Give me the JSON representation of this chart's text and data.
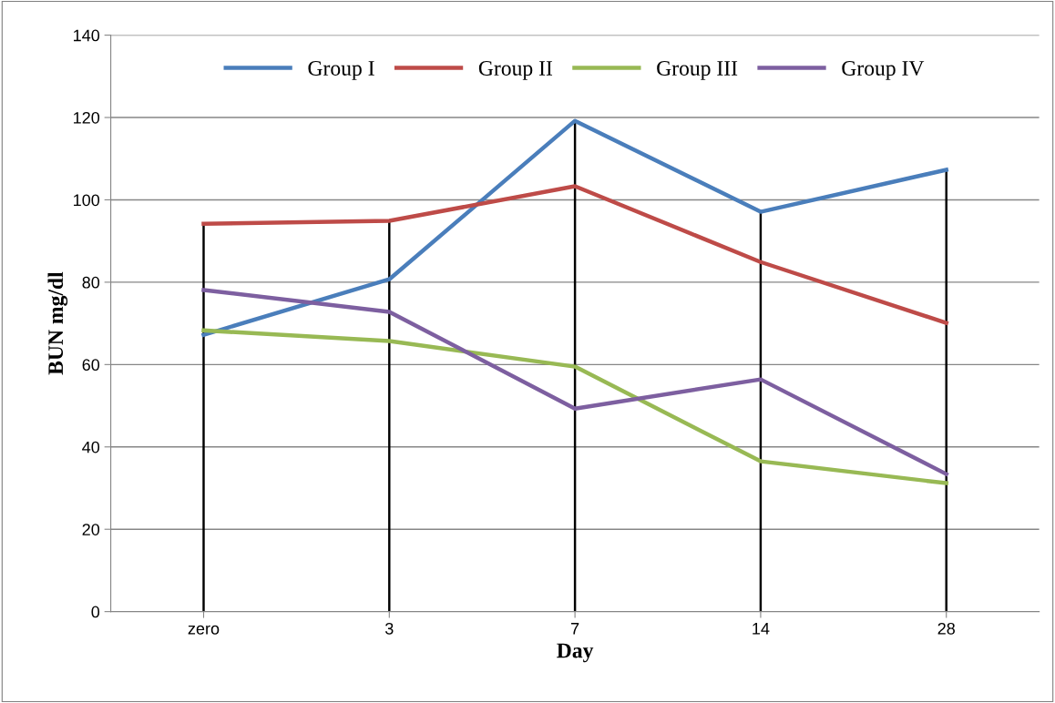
{
  "chart_data": {
    "type": "line",
    "xlabel": "Day",
    "ylabel": "BUN mg/dl",
    "categories": [
      "zero",
      "3",
      "7",
      "14",
      "28"
    ],
    "series": [
      {
        "name": "Group I",
        "color": "#4a7ebb",
        "values": [
          67.2,
          80.7,
          119.2,
          97.1,
          107.3
        ]
      },
      {
        "name": "Group II",
        "color": "#be4b48",
        "values": [
          94.2,
          94.9,
          103.3,
          84.9,
          70.1
        ]
      },
      {
        "name": "Group III",
        "color": "#98b954",
        "values": [
          68.3,
          65.7,
          59.5,
          36.5,
          31.2
        ]
      },
      {
        "name": "Group IV",
        "color": "#7d5fa0",
        "values": [
          78.1,
          72.8,
          49.3,
          56.4,
          33.4
        ]
      },
      {
        "type": "bar",
        "color": "#000000",
        "values": [
          94.2,
          94.9,
          119.2,
          97.1,
          107.3
        ]
      }
    ],
    "ylim": [
      0,
      140
    ],
    "yticks": [
      0,
      20,
      40,
      60,
      80,
      100,
      120,
      140
    ],
    "grid": "y",
    "legend": "top",
    "marker": "none",
    "line_style": "solid"
  }
}
